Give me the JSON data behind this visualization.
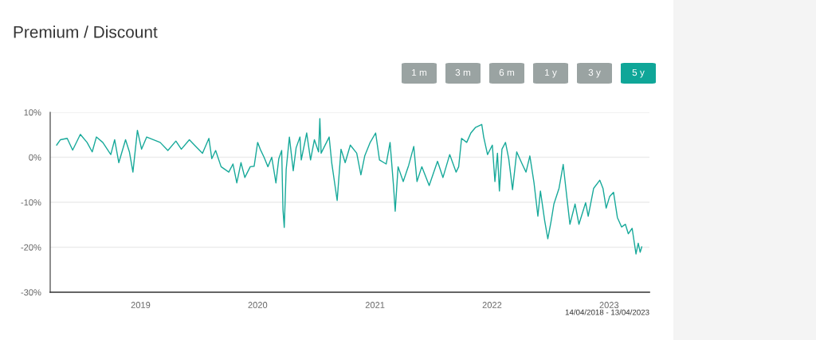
{
  "chart_data": {
    "type": "line",
    "title": "Premium / Discount",
    "annotations": [
      "1 m",
      "3 m",
      "6 m",
      "1 y",
      "3 y",
      "5 y",
      "14/04/2018 - 13/04/2023"
    ],
    "xlim": [
      "2018-03-25",
      "2023-05-07"
    ],
    "xticks": [
      "2019",
      "2020",
      "2021",
      "2022",
      "2023"
    ],
    "ylim": [
      -30,
      10
    ],
    "yticks": [
      {
        "value": 10,
        "label": "10%"
      },
      {
        "value": 0,
        "label": "0%"
      },
      {
        "value": -10,
        "label": "-10%"
      },
      {
        "value": -20,
        "label": "-20%"
      },
      {
        "value": -30,
        "label": "-30%"
      }
    ],
    "grid": "y",
    "marker": "none",
    "line_style": "solid",
    "series": [
      {
        "color": "#17a99a",
        "x": [
          "2018-04-14",
          "2018-04-26",
          "2018-05-17",
          "2018-06-03",
          "2018-06-27",
          "2018-07-18",
          "2018-08-03",
          "2018-08-16",
          "2018-09-05",
          "2018-09-30",
          "2018-10-12",
          "2018-10-25",
          "2018-11-15",
          "2018-11-27",
          "2018-12-08",
          "2018-12-22",
          "2019-01-04",
          "2019-01-20",
          "2019-03-03",
          "2019-03-27",
          "2019-04-21",
          "2019-05-08",
          "2019-06-02",
          "2019-06-18",
          "2019-07-13",
          "2019-08-02",
          "2019-08-11",
          "2019-08-23",
          "2019-09-09",
          "2019-10-03",
          "2019-10-16",
          "2019-10-28",
          "2019-11-10",
          "2019-11-22",
          "2019-12-09",
          "2019-12-21",
          "2020-01-01",
          "2020-01-09",
          "2020-01-21",
          "2020-02-02",
          "2020-02-14",
          "2020-02-27",
          "2020-03-07",
          "2020-03-16",
          "2020-03-20",
          "2020-03-24",
          "2020-03-30",
          "2020-04-09",
          "2020-04-21",
          "2020-04-30",
          "2020-05-12",
          "2020-05-16",
          "2020-06-02",
          "2020-06-14",
          "2020-06-26",
          "2020-07-09",
          "2020-07-13",
          "2020-07-17",
          "2020-08-11",
          "2020-08-19",
          "2020-09-05",
          "2020-09-17",
          "2020-09-30",
          "2020-10-16",
          "2020-11-05",
          "2020-11-18",
          "2020-11-30",
          "2020-12-17",
          "2021-01-03",
          "2021-01-15",
          "2021-02-05",
          "2021-02-17",
          "2021-02-28",
          "2021-03-05",
          "2021-03-14",
          "2021-03-30",
          "2021-04-16",
          "2021-05-02",
          "2021-05-12",
          "2021-05-27",
          "2021-06-19",
          "2021-07-15",
          "2021-08-01",
          "2021-08-22",
          "2021-09-11",
          "2021-09-19",
          "2021-09-28",
          "2021-10-14",
          "2021-10-27",
          "2021-11-10",
          "2021-11-30",
          "2021-12-06",
          "2021-12-18",
          "2022-01-02",
          "2022-01-10",
          "2022-01-18",
          "2022-01-24",
          "2022-02-01",
          "2022-02-12",
          "2022-02-22",
          "2022-03-06",
          "2022-03-19",
          "2022-04-05",
          "2022-04-17",
          "2022-04-29",
          "2022-05-12",
          "2022-05-24",
          "2022-06-01",
          "2022-06-14",
          "2022-06-24",
          "2022-07-04",
          "2022-07-13",
          "2022-07-29",
          "2022-08-11",
          "2022-08-23",
          "2022-09-01",
          "2022-09-17",
          "2022-09-29",
          "2022-10-20",
          "2022-10-28",
          "2022-11-14",
          "2022-12-03",
          "2022-12-13",
          "2022-12-23",
          "2023-01-03",
          "2023-01-15",
          "2023-01-27",
          "2023-02-09",
          "2023-02-21",
          "2023-03-02",
          "2023-03-14",
          "2023-03-26",
          "2023-04-02",
          "2023-04-08",
          "2023-04-13"
        ],
        "values": [
          2.7,
          3.9,
          4.2,
          1.6,
          5.1,
          3.3,
          1.2,
          4.5,
          3.3,
          0.6,
          3.9,
          -1.2,
          3.9,
          1.2,
          -3.3,
          6.0,
          1.8,
          4.5,
          3.3,
          1.5,
          3.6,
          1.8,
          3.9,
          2.7,
          0.9,
          4.2,
          -0.3,
          1.5,
          -2.1,
          -3.3,
          -1.5,
          -5.7,
          -1.2,
          -4.5,
          -2.1,
          -2.0,
          3.3,
          1.8,
          0,
          -2.1,
          0,
          -5.7,
          -0.3,
          1.5,
          -11.7,
          -15.6,
          -2.7,
          4.5,
          -3.0,
          2.1,
          4.5,
          -0.6,
          5.4,
          -0.6,
          3.9,
          1.2,
          8.6,
          0.9,
          4.5,
          -1.2,
          -9.6,
          1.8,
          -1.2,
          2.7,
          0.9,
          -3.9,
          0.3,
          3.3,
          5.4,
          -0.6,
          -1.5,
          3.3,
          -6.6,
          -12.0,
          -2.1,
          -5.4,
          -1.8,
          2.4,
          -5.4,
          -2.1,
          -6.3,
          -0.9,
          -4.5,
          0.6,
          -3.3,
          -2.1,
          4.2,
          3.3,
          5.4,
          6.6,
          7.3,
          4.5,
          0.6,
          2.7,
          -5.4,
          0.9,
          -7.5,
          1.8,
          3.3,
          -0.3,
          -7.2,
          1.2,
          -1.5,
          -3.3,
          0.3,
          -5.7,
          -13.1,
          -7.5,
          -14.0,
          -18.1,
          -14.3,
          -10.4,
          -6.9,
          -1.6,
          -9.3,
          -14.9,
          -10.4,
          -14.9,
          -10.1,
          -13.1,
          -6.9,
          -5.1,
          -6.9,
          -11.3,
          -8.7,
          -7.8,
          -13.4,
          -15.5,
          -14.9,
          -17.0,
          -15.8,
          -21.5,
          -19.1,
          -21.1,
          -19.9
        ]
      }
    ]
  }
}
